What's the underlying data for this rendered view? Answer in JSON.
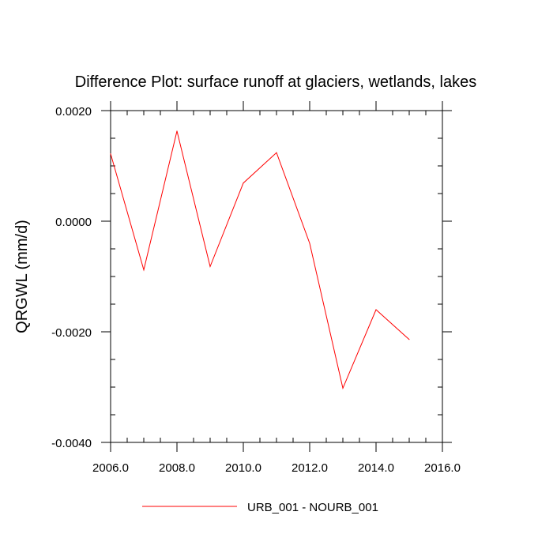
{
  "chart_data": {
    "type": "line",
    "title": "Difference Plot: surface runoff at glaciers, wetlands, lakes",
    "xlabel": "",
    "ylabel": "QRGWL  (mm/d)",
    "xlim": [
      2006,
      2016
    ],
    "ylim": [
      -0.004,
      0.002
    ],
    "x_ticks": [
      2006,
      2008,
      2010,
      2012,
      2014,
      2016
    ],
    "x_tick_labels": [
      "2006.0",
      "2008.0",
      "2010.0",
      "2012.0",
      "2014.0",
      "2016.0"
    ],
    "y_ticks": [
      0.002,
      0.0,
      -0.002,
      -0.004
    ],
    "y_tick_labels": [
      "0.0020",
      "0.0000",
      "-0.0020",
      "-0.0040"
    ],
    "x_minor_step": 0.5,
    "y_minor_step": 0.0005,
    "grid": false,
    "legend_position": "bottom-center",
    "series": [
      {
        "name": "URB_001 - NOURB_001",
        "color": "#ff0000",
        "x": [
          2006,
          2007,
          2008,
          2009,
          2010,
          2011,
          2012,
          2013,
          2014,
          2015
        ],
        "values": [
          0.00122,
          -0.00088,
          0.00163,
          -0.00082,
          0.00069,
          0.00124,
          -0.0004,
          -0.00302,
          -0.0016,
          -0.00214
        ]
      }
    ]
  }
}
